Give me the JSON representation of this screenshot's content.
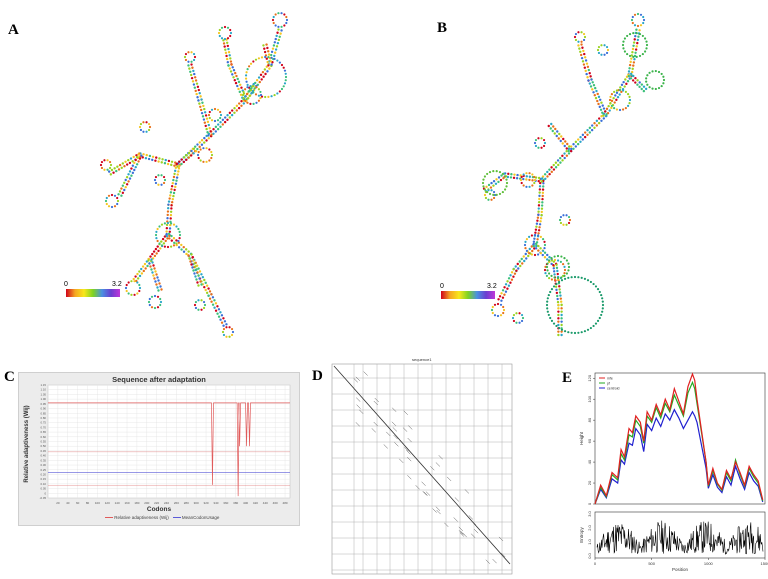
{
  "panels": {
    "a": {
      "letter": "A"
    },
    "b": {
      "letter": "B"
    },
    "c": {
      "letter": "C"
    },
    "d": {
      "letter": "D"
    },
    "e": {
      "letter": "E"
    }
  },
  "structure_scale": {
    "min": "0",
    "max": "3.2"
  },
  "chart_data": [
    {
      "type": "line",
      "panel": "C",
      "title": "Sequence after adaptation",
      "xlabel": "Codons",
      "ylabel": "Relative adaptiveness (Wij)",
      "x_ticks": [
        "20",
        "40",
        "60",
        "80",
        "100",
        "120",
        "140",
        "160",
        "180",
        "200",
        "220",
        "240",
        "260",
        "280",
        "300",
        "320",
        "340",
        "360",
        "380",
        "400",
        "420",
        "440",
        "460",
        "480"
      ],
      "y_ticks": [
        "-0.05",
        "0",
        "0.05",
        "0.10",
        "0.15",
        "0.20",
        "0.25",
        "0.30",
        "0.35",
        "0.40",
        "0.45",
        "0.50",
        "0.55",
        "0.60",
        "0.65",
        "0.70",
        "0.75",
        "0.80",
        "0.85",
        "0.90",
        "0.95",
        "1.00",
        "1.05",
        "1.10",
        "1.15"
      ],
      "xlim": [
        0,
        490
      ],
      "ylim": [
        -0.05,
        1.15
      ],
      "series": [
        {
          "name": "Relative adaptiveness (Wij)",
          "color": "#e05a5a",
          "baseline": 0.96,
          "dips": [
            {
              "x": 333,
              "y": 0.09
            },
            {
              "x": 385,
              "y": -0.03
            },
            {
              "x": 388,
              "y": 0.5
            },
            {
              "x": 402,
              "y": 0.5
            },
            {
              "x": 408,
              "y": 0.5
            }
          ]
        },
        {
          "name": "MeanCodonUsage",
          "color": "#5a5ad8",
          "value": 0.22
        }
      ],
      "extra_lines": [
        {
          "y": 0.44,
          "color": "#d66"
        },
        {
          "y": 0.08,
          "color": "#d66"
        }
      ],
      "grid": true,
      "legend": "bottom"
    },
    {
      "type": "heatmap",
      "panel": "D",
      "title": "sequence1",
      "description_free": true
    },
    {
      "type": "line",
      "panel": "E",
      "ylabel": "Height",
      "xlabel": "Position",
      "x_ticks": [
        "0",
        "500",
        "1000",
        "1500"
      ],
      "y_ticks": [
        "0",
        "20",
        "40",
        "60",
        "80",
        "100",
        "120"
      ],
      "xlim": [
        0,
        1500
      ],
      "ylim": [
        0,
        125
      ],
      "legend": "top-left",
      "series": [
        {
          "name": "mfe",
          "color": "#e02020",
          "x": [
            0,
            50,
            100,
            150,
            200,
            230,
            260,
            300,
            330,
            360,
            400,
            430,
            460,
            500,
            540,
            580,
            620,
            660,
            700,
            740,
            780,
            820,
            860,
            880,
            900,
            940,
            980,
            1000,
            1040,
            1080,
            1120,
            1160,
            1200,
            1240,
            1280,
            1320,
            1360,
            1400,
            1440,
            1480
          ],
          "y": [
            0,
            18,
            8,
            30,
            25,
            52,
            45,
            72,
            68,
            84,
            78,
            60,
            88,
            80,
            95,
            85,
            100,
            90,
            110,
            98,
            86,
            112,
            124,
            118,
            100,
            70,
            40,
            18,
            34,
            20,
            14,
            32,
            24,
            40,
            30,
            18,
            36,
            28,
            22,
            4
          ]
        },
        {
          "name": "pf",
          "color": "#22aa22",
          "x": [
            0,
            50,
            100,
            150,
            200,
            230,
            260,
            300,
            330,
            360,
            400,
            430,
            460,
            500,
            540,
            580,
            620,
            660,
            700,
            740,
            780,
            820,
            860,
            880,
            900,
            940,
            980,
            1000,
            1040,
            1080,
            1120,
            1160,
            1200,
            1240,
            1280,
            1320,
            1360,
            1400,
            1440,
            1480
          ],
          "y": [
            0,
            16,
            7,
            28,
            23,
            48,
            42,
            66,
            64,
            80,
            74,
            58,
            84,
            78,
            92,
            82,
            96,
            88,
            104,
            94,
            84,
            106,
            116,
            110,
            96,
            68,
            40,
            17,
            32,
            19,
            13,
            30,
            22,
            42,
            28,
            17,
            34,
            26,
            20,
            3
          ]
        },
        {
          "name": "centroid",
          "color": "#2020d0",
          "x": [
            0,
            50,
            100,
            150,
            200,
            230,
            260,
            300,
            330,
            360,
            400,
            430,
            460,
            500,
            540,
            580,
            620,
            660,
            700,
            740,
            780,
            820,
            860,
            880,
            900,
            940,
            980,
            1000,
            1040,
            1080,
            1120,
            1160,
            1200,
            1240,
            1280,
            1320,
            1360,
            1400,
            1440,
            1480
          ],
          "y": [
            0,
            14,
            6,
            24,
            20,
            42,
            38,
            58,
            56,
            72,
            66,
            50,
            76,
            70,
            82,
            74,
            86,
            80,
            90,
            82,
            72,
            80,
            88,
            84,
            78,
            56,
            34,
            15,
            28,
            16,
            11,
            26,
            18,
            36,
            24,
            14,
            30,
            22,
            17,
            2
          ]
        }
      ],
      "entropy": {
        "ylabel": "Entropy",
        "y_ticks": [
          "0.0",
          "1.0",
          "2.0",
          "3.0"
        ],
        "ylim": [
          0,
          3
        ]
      }
    }
  ]
}
